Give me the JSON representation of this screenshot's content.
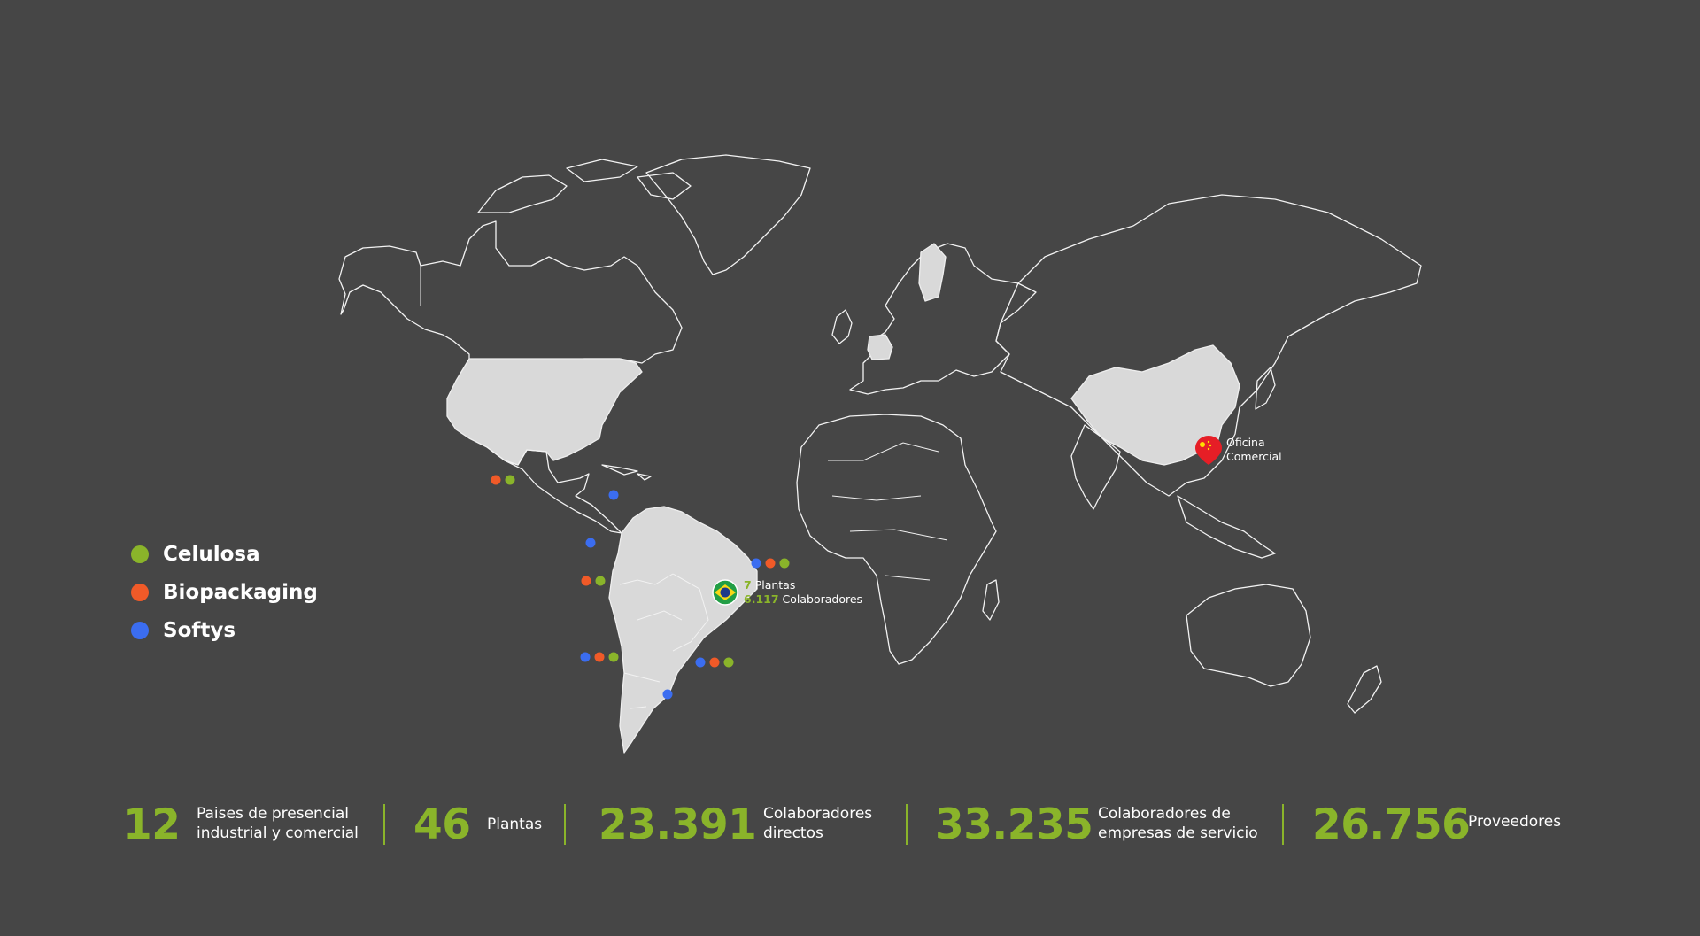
{
  "legend": {
    "items": [
      {
        "label": "Celulosa",
        "color": "#8ab42a"
      },
      {
        "label": "Biopackaging",
        "color": "#f05a28"
      },
      {
        "label": "Softys",
        "color": "#3b6df0"
      }
    ]
  },
  "pins": {
    "brazil": {
      "plants_num": "7",
      "plants_label": "Plantas",
      "employees_num": "6.117",
      "employees_label": "Colaboradores",
      "icon": "brazil-flag-icon"
    },
    "china": {
      "line1": "Oficina",
      "line2": "Comercial",
      "icon": "china-flag-pin-icon"
    }
  },
  "stats": [
    {
      "value": "12",
      "label_line1": "Paises de presencial",
      "label_line2": "industrial y comercial"
    },
    {
      "value": "46",
      "label_line1": "Plantas",
      "label_line2": ""
    },
    {
      "value": "23.391",
      "label_line1": "Colaboradores",
      "label_line2": "directos"
    },
    {
      "value": "33.235",
      "label_line1": "Colaboradores de",
      "label_line2": "empresas de servicio"
    },
    {
      "value": "26.756",
      "label_line1": "Proveedores",
      "label_line2": ""
    }
  ],
  "colors": {
    "background": "#464646",
    "accent": "#8ab42a",
    "highlight_country": "#d9d9d9",
    "outline": "#f2f2f2"
  }
}
